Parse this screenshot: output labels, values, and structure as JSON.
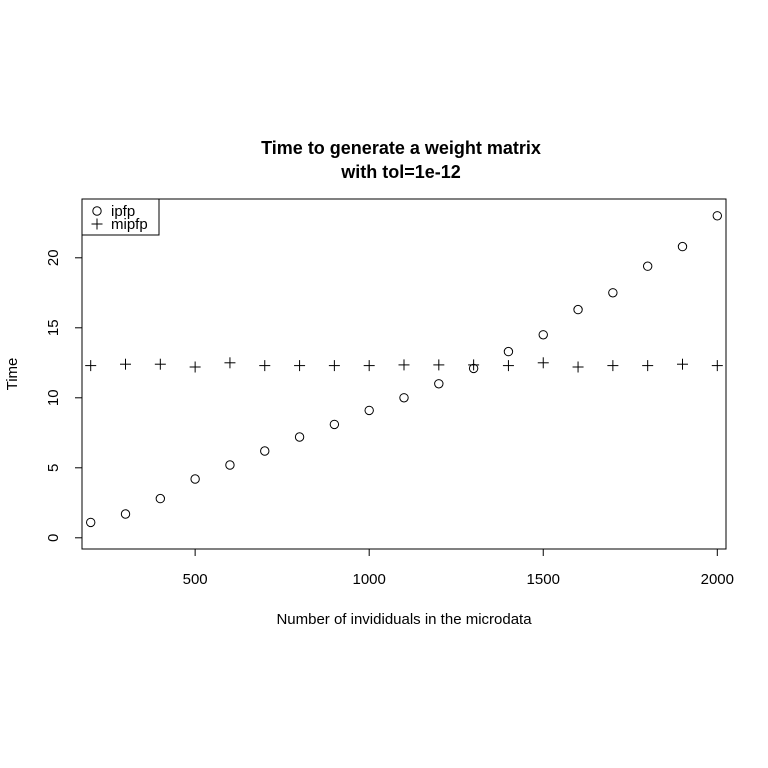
{
  "chart_data": {
    "type": "scatter",
    "title": [
      "Time to generate a weight matrix",
      "with tol=1e-12"
    ],
    "xlabel": "Number of invididuals in the microdata",
    "ylabel": "Time",
    "xlim": [
      175,
      2025
    ],
    "ylim": [
      -0.8,
      24.2
    ],
    "xticks": [
      500,
      1000,
      1500,
      2000
    ],
    "yticks": [
      0,
      5,
      10,
      15,
      20
    ],
    "grid": false,
    "legend_position": "top-left",
    "series": [
      {
        "name": "ipfp",
        "marker": "circle",
        "x": [
          200,
          300,
          400,
          500,
          600,
          700,
          800,
          900,
          1000,
          1100,
          1200,
          1300,
          1400,
          1500,
          1600,
          1700,
          1800,
          1900,
          2000
        ],
        "y": [
          1.1,
          1.7,
          2.8,
          4.2,
          5.2,
          6.2,
          7.2,
          8.1,
          9.1,
          10.0,
          11.0,
          12.1,
          13.3,
          14.5,
          16.3,
          17.5,
          19.4,
          20.8,
          23.0
        ]
      },
      {
        "name": "mipfp",
        "marker": "plus",
        "x": [
          200,
          300,
          400,
          500,
          600,
          700,
          800,
          900,
          1000,
          1100,
          1200,
          1300,
          1400,
          1500,
          1600,
          1700,
          1800,
          1900,
          2000
        ],
        "y": [
          12.3,
          12.4,
          12.4,
          12.2,
          12.5,
          12.3,
          12.3,
          12.3,
          12.3,
          12.35,
          12.35,
          12.35,
          12.3,
          12.5,
          12.2,
          12.3,
          12.3,
          12.4,
          12.3
        ]
      }
    ]
  }
}
